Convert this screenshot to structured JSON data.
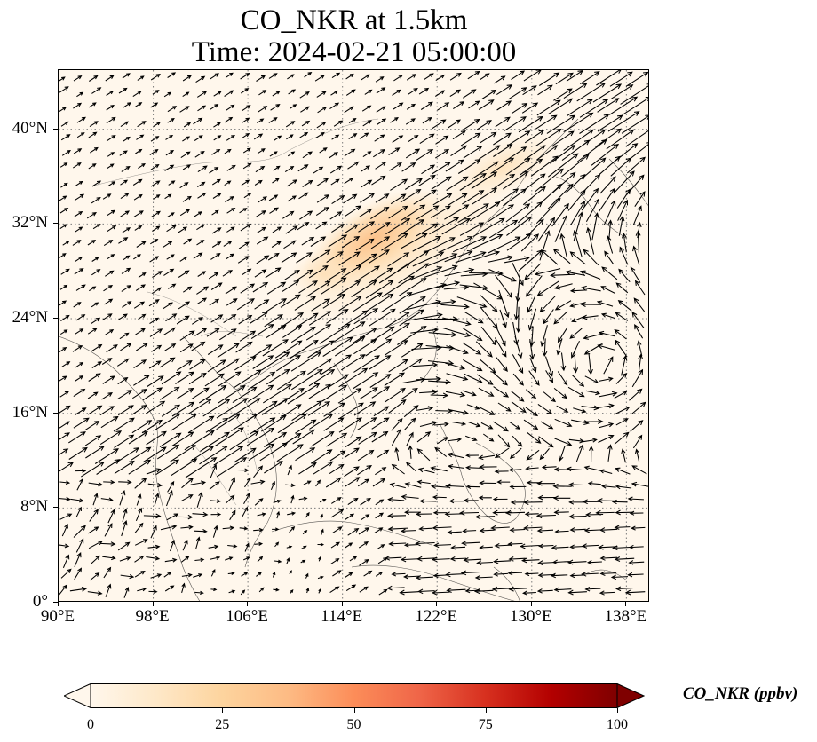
{
  "title": {
    "line1": "CO_NKR at 1.5km",
    "line2": "Time: 2024-02-21 05:00:00"
  },
  "map": {
    "lon_range": [
      90,
      140
    ],
    "lat_range": [
      0,
      45
    ],
    "lat_ticks": [
      {
        "value": 40,
        "label": "40°N"
      },
      {
        "value": 32,
        "label": "32°N"
      },
      {
        "value": 24,
        "label": "24°N"
      },
      {
        "value": 16,
        "label": "16°N"
      },
      {
        "value": 8,
        "label": "8°N"
      },
      {
        "value": 0,
        "label": "0°"
      }
    ],
    "lon_ticks": [
      {
        "value": 90,
        "label": "90°E"
      },
      {
        "value": 98,
        "label": "98°E"
      },
      {
        "value": 106,
        "label": "106°E"
      },
      {
        "value": 114,
        "label": "114°E"
      },
      {
        "value": 122,
        "label": "122°E"
      },
      {
        "value": 130,
        "label": "130°E"
      },
      {
        "value": 138,
        "label": "138°E"
      }
    ],
    "gridlines": true,
    "background_color": "#fff7ec",
    "field_plume": {
      "description_color_low": "#fee4c0",
      "description_color_high": "#fdbf86"
    }
  },
  "colorbar": {
    "label": "CO_NKR (ppbv)",
    "min": 0,
    "max": 100,
    "extend": "both",
    "ticks": [
      {
        "value": 0,
        "label": "0"
      },
      {
        "value": 25,
        "label": "25"
      },
      {
        "value": 50,
        "label": "50"
      },
      {
        "value": 75,
        "label": "75"
      },
      {
        "value": 100,
        "label": "100"
      }
    ],
    "colors": [
      "#fff7ec",
      "#fee8c8",
      "#fdd49e",
      "#fdbb84",
      "#fc8d59",
      "#ef6548",
      "#d7301f",
      "#b30000",
      "#7f0000"
    ]
  }
}
